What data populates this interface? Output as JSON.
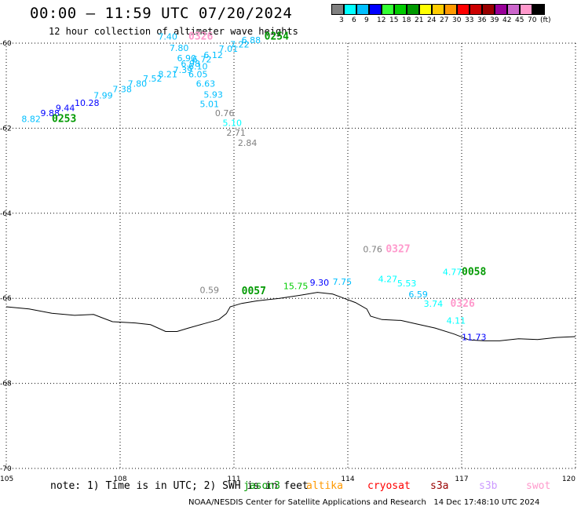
{
  "header": {
    "title": "00:00 – 11:59 UTC 07/20/2024",
    "subtitle": "12 hour collection of altimeter wave heights"
  },
  "colorbar": {
    "colors": [
      "#808080",
      "#00ffff",
      "#00bfff",
      "#0000ff",
      "#33ff33",
      "#00cc00",
      "#009900",
      "#ffff00",
      "#ffcc00",
      "#ff9900",
      "#ff0000",
      "#cc0000",
      "#990000",
      "#990099",
      "#cc66cc",
      "#ff99cc",
      "#000000"
    ],
    "labels": [
      "3",
      "6",
      "9",
      "12",
      "15",
      "18",
      "21",
      "24",
      "27",
      "30",
      "33",
      "36",
      "39",
      "42",
      "45",
      "70",
      "(ft)"
    ]
  },
  "map": {
    "lon_range": [
      105,
      120
    ],
    "lat_range": [
      -70,
      -60
    ],
    "x_ticks": [
      "105",
      "108",
      "111",
      "114",
      "117",
      "120"
    ],
    "y_ticks": [
      "-60",
      "-62",
      "-64",
      "-66",
      "-68",
      "-70"
    ],
    "coastline_lon_lat": [
      [
        105.0,
        -66.2
      ],
      [
        105.6,
        -66.25
      ],
      [
        106.2,
        -66.35
      ],
      [
        106.8,
        -66.4
      ],
      [
        107.3,
        -66.38
      ],
      [
        107.8,
        -66.55
      ],
      [
        108.4,
        -66.58
      ],
      [
        108.8,
        -66.62
      ],
      [
        109.2,
        -66.78
      ],
      [
        109.5,
        -66.78
      ],
      [
        109.8,
        -66.7
      ],
      [
        110.2,
        -66.6
      ],
      [
        110.6,
        -66.5
      ],
      [
        110.8,
        -66.36
      ],
      [
        110.9,
        -66.2
      ],
      [
        111.2,
        -66.12
      ],
      [
        111.6,
        -66.06
      ],
      [
        112.2,
        -66.0
      ],
      [
        112.8,
        -65.92
      ],
      [
        113.2,
        -65.86
      ],
      [
        113.6,
        -65.9
      ],
      [
        113.9,
        -66.0
      ],
      [
        114.2,
        -66.1
      ],
      [
        114.5,
        -66.25
      ],
      [
        114.6,
        -66.42
      ],
      [
        114.9,
        -66.5
      ],
      [
        115.4,
        -66.52
      ],
      [
        115.8,
        -66.6
      ],
      [
        116.3,
        -66.7
      ],
      [
        116.8,
        -66.84
      ],
      [
        117.2,
        -66.98
      ],
      [
        117.6,
        -67.0
      ],
      [
        118.0,
        -67.0
      ],
      [
        118.5,
        -66.95
      ],
      [
        119.0,
        -66.97
      ],
      [
        119.5,
        -66.92
      ],
      [
        120.0,
        -66.9
      ]
    ],
    "observations": [
      {
        "text": "8.82",
        "lon": 105.4,
        "lat": -61.85,
        "color": "#00bfff"
      },
      {
        "text": "9.88",
        "lon": 105.9,
        "lat": -61.72,
        "color": "#0000ff"
      },
      {
        "text": "9.44",
        "lon": 106.3,
        "lat": -61.6,
        "color": "#0000ff"
      },
      {
        "text": "10.28",
        "lon": 106.8,
        "lat": -61.48,
        "color": "#0000ff"
      },
      {
        "text": "7.99",
        "lon": 107.3,
        "lat": -61.3,
        "color": "#00bfff"
      },
      {
        "text": "7.38",
        "lon": 107.8,
        "lat": -61.15,
        "color": "#00bfff"
      },
      {
        "text": "7.80",
        "lon": 108.2,
        "lat": -61.02,
        "color": "#00bfff"
      },
      {
        "text": "7.52",
        "lon": 108.6,
        "lat": -60.9,
        "color": "#00bfff"
      },
      {
        "text": "8.21",
        "lon": 109.0,
        "lat": -60.8,
        "color": "#00bfff"
      },
      {
        "text": "7.39",
        "lon": 109.4,
        "lat": -60.7,
        "color": "#00bfff"
      },
      {
        "text": "7.40",
        "lon": 109.0,
        "lat": -59.92,
        "color": "#00bfff"
      },
      {
        "text": "7.80",
        "lon": 109.3,
        "lat": -60.18,
        "color": "#00bfff"
      },
      {
        "text": "6.90",
        "lon": 109.5,
        "lat": -60.42,
        "color": "#00bfff"
      },
      {
        "text": "6.98",
        "lon": 109.6,
        "lat": -60.55,
        "color": "#00bfff"
      },
      {
        "text": "6.72",
        "lon": 109.9,
        "lat": -60.45,
        "color": "#00bfff"
      },
      {
        "text": "6.10",
        "lon": 109.8,
        "lat": -60.62,
        "color": "#00bfff"
      },
      {
        "text": "6.12",
        "lon": 110.2,
        "lat": -60.35,
        "color": "#00bfff"
      },
      {
        "text": "7.01",
        "lon": 110.6,
        "lat": -60.2,
        "color": "#00bfff"
      },
      {
        "text": "7.22",
        "lon": 110.9,
        "lat": -60.1,
        "color": "#00bfff"
      },
      {
        "text": "6.88",
        "lon": 111.2,
        "lat": -60.0,
        "color": "#00bfff"
      },
      {
        "text": "6.05",
        "lon": 109.8,
        "lat": -60.8,
        "color": "#00bfff"
      },
      {
        "text": "6.63",
        "lon": 110.0,
        "lat": -61.02,
        "color": "#00bfff"
      },
      {
        "text": "5.93",
        "lon": 110.2,
        "lat": -61.28,
        "color": "#00bfff"
      },
      {
        "text": "5.01",
        "lon": 110.1,
        "lat": -61.5,
        "color": "#00bfff"
      },
      {
        "text": "0.76",
        "lon": 110.5,
        "lat": -61.72,
        "color": "#808080"
      },
      {
        "text": "5.10",
        "lon": 110.7,
        "lat": -61.95,
        "color": "#00ffff"
      },
      {
        "text": "2.71",
        "lon": 110.8,
        "lat": -62.18,
        "color": "#808080"
      },
      {
        "text": "2.84",
        "lon": 111.1,
        "lat": -62.42,
        "color": "#808080"
      },
      {
        "text": "0.59",
        "lon": 110.1,
        "lat": -65.88,
        "color": "#808080"
      },
      {
        "text": "15.75",
        "lon": 112.3,
        "lat": -65.78,
        "color": "#00cc00"
      },
      {
        "text": "9.30",
        "lon": 113.0,
        "lat": -65.7,
        "color": "#0000ff"
      },
      {
        "text": "7.75",
        "lon": 113.6,
        "lat": -65.68,
        "color": "#00bfff"
      },
      {
        "text": "0.76",
        "lon": 114.4,
        "lat": -64.92,
        "color": "#808080"
      },
      {
        "text": "4.27",
        "lon": 114.8,
        "lat": -65.62,
        "color": "#00ffff"
      },
      {
        "text": "5.53",
        "lon": 115.3,
        "lat": -65.72,
        "color": "#00ffff"
      },
      {
        "text": "4.77",
        "lon": 116.5,
        "lat": -65.45,
        "color": "#00ffff"
      },
      {
        "text": "6.59",
        "lon": 115.6,
        "lat": -65.98,
        "color": "#00bfff"
      },
      {
        "text": "3.74",
        "lon": 116.0,
        "lat": -66.2,
        "color": "#00ffff"
      },
      {
        "text": "4.11",
        "lon": 116.6,
        "lat": -66.6,
        "color": "#00ffff"
      },
      {
        "text": "11.73",
        "lon": 117.0,
        "lat": -66.98,
        "color": "#0000ff"
      }
    ],
    "pass_labels": [
      {
        "text": "0253",
        "lon": 106.2,
        "lat": -61.85,
        "color": "#009900"
      },
      {
        "text": "0326",
        "lon": 109.8,
        "lat": -59.92,
        "color": "#ff99cc"
      },
      {
        "text": "0254",
        "lon": 111.8,
        "lat": -59.92,
        "color": "#009900"
      },
      {
        "text": "0057",
        "lon": 111.2,
        "lat": -65.9,
        "color": "#009900"
      },
      {
        "text": "0327",
        "lon": 115.0,
        "lat": -64.92,
        "color": "#ff99cc"
      },
      {
        "text": "0058",
        "lon": 117.0,
        "lat": -65.45,
        "color": "#009900"
      },
      {
        "text": "0326",
        "lon": 116.7,
        "lat": -66.2,
        "color": "#ff99cc"
      }
    ]
  },
  "note": "note: 1) Time is in UTC; 2) SWH is in feet",
  "satellites": [
    {
      "name": "jason3",
      "color": "#009900"
    },
    {
      "name": "altika",
      "color": "#ff9900"
    },
    {
      "name": "cryosat",
      "color": "#ff0000"
    },
    {
      "name": "s3a",
      "color": "#990000"
    },
    {
      "name": "s3b",
      "color": "#cc99ff"
    },
    {
      "name": "swot",
      "color": "#ff99cc"
    }
  ],
  "credit": "NOAA/NESDIS Center for Satellite Applications and Research   14 Dec 17:48:10 UTC 2024"
}
